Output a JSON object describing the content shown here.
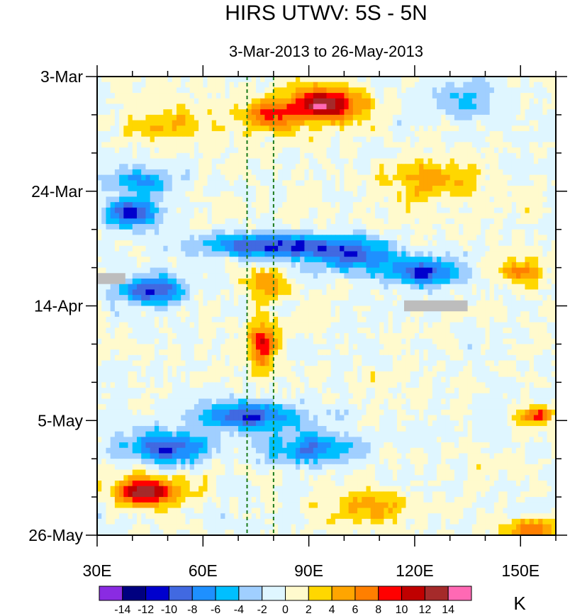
{
  "chart_data": {
    "type": "heatmap",
    "title": "HIRS UTWV: 5S - 5N",
    "subtitle": "3-Mar-2013 to 26-May-2013",
    "x_range": [
      30,
      160
    ],
    "x_ticks": [
      {
        "value": 30,
        "label": "30E"
      },
      {
        "value": 60,
        "label": "60E"
      },
      {
        "value": 90,
        "label": "90E"
      },
      {
        "value": 120,
        "label": "120E"
      },
      {
        "value": 150,
        "label": "150E"
      }
    ],
    "y_range": [
      "2013-03-03",
      "2013-05-26"
    ],
    "y_ticks": [
      {
        "value": 0,
        "label": "3-Mar"
      },
      {
        "value": 21,
        "label": "24-Mar"
      },
      {
        "value": 42,
        "label": "14-Apr"
      },
      {
        "value": 63,
        "label": "5-May"
      },
      {
        "value": 84,
        "label": "26-May"
      }
    ],
    "reference_lines": [
      {
        "longitude": 72.5,
        "style": "dashed",
        "color": "#1a7a1a"
      },
      {
        "longitude": 80,
        "style": "dashed",
        "color": "#1a7a1a"
      }
    ],
    "missing_color": "#bdbdbd",
    "colorbar": {
      "unit": "K",
      "levels": [
        -14,
        -12,
        -10,
        -8,
        -6,
        -4,
        -2,
        0,
        2,
        4,
        6,
        8,
        10,
        12,
        14
      ],
      "level_labels": [
        "-14",
        "-12",
        "-10",
        "-8",
        "-6",
        "-4",
        "-2",
        "0",
        "2",
        "4",
        "6",
        "8",
        "10",
        "12",
        "14"
      ],
      "colors": [
        "#8a2be2",
        "#000080",
        "#0000cd",
        "#4169e1",
        "#1e90ff",
        "#00bfff",
        "#a0cfff",
        "#dff6ff",
        "#fffacd",
        "#ffd700",
        "#ffa500",
        "#ff7f00",
        "#ff0000",
        "#c00000",
        "#a52a2a",
        "#ff69b4"
      ]
    },
    "anomalies_K": [
      {
        "lon": 95,
        "day": 5,
        "value": 14,
        "sx": 9,
        "sy": 3.2
      },
      {
        "lon": 80,
        "day": 7,
        "value": 9,
        "sx": 8,
        "sy": 3
      },
      {
        "lon": 125,
        "day": 19,
        "value": 5,
        "sx": 12,
        "sy": 4
      },
      {
        "lon": 50,
        "day": 9,
        "value": 4,
        "sx": 14,
        "sy": 3
      },
      {
        "lon": 135,
        "day": 4,
        "value": -4,
        "sx": 10,
        "sy": 4
      },
      {
        "lon": 42,
        "day": 19,
        "value": -6,
        "sx": 10,
        "sy": 3
      },
      {
        "lon": 40,
        "day": 25,
        "value": -12,
        "sx": 7,
        "sy": 2.5
      },
      {
        "lon": 80,
        "day": 31,
        "value": -10,
        "sx": 20,
        "sy": 2.2
      },
      {
        "lon": 102,
        "day": 33,
        "value": -8,
        "sx": 14,
        "sy": 3
      },
      {
        "lon": 123,
        "day": 36,
        "value": -10,
        "sx": 10,
        "sy": 2.5
      },
      {
        "lon": 45,
        "day": 39,
        "value": -12,
        "sx": 8,
        "sy": 2.5
      },
      {
        "lon": 78,
        "day": 38,
        "value": 6,
        "sx": 6,
        "sy": 3
      },
      {
        "lon": 77,
        "day": 49,
        "value": 10,
        "sx": 4,
        "sy": 4
      },
      {
        "lon": 150,
        "day": 36,
        "value": 8,
        "sx": 6,
        "sy": 2
      },
      {
        "lon": 72,
        "day": 62,
        "value": -10,
        "sx": 14,
        "sy": 2.5
      },
      {
        "lon": 50,
        "day": 68,
        "value": -10,
        "sx": 12,
        "sy": 3
      },
      {
        "lon": 90,
        "day": 68,
        "value": -8,
        "sx": 12,
        "sy": 3
      },
      {
        "lon": 44,
        "day": 76,
        "value": 14,
        "sx": 8,
        "sy": 2.6
      },
      {
        "lon": 152,
        "day": 83,
        "value": 7,
        "sx": 8,
        "sy": 2
      },
      {
        "lon": 155,
        "day": 62,
        "value": 8,
        "sx": 5,
        "sy": 1.5
      },
      {
        "lon": 108,
        "day": 79,
        "value": 5,
        "sx": 10,
        "sy": 3
      }
    ],
    "missing_regions": [
      {
        "lon": [
          30,
          38
        ],
        "day": [
          36,
          38
        ]
      },
      {
        "lon": [
          117,
          135
        ],
        "day": [
          41,
          43
        ]
      }
    ]
  }
}
